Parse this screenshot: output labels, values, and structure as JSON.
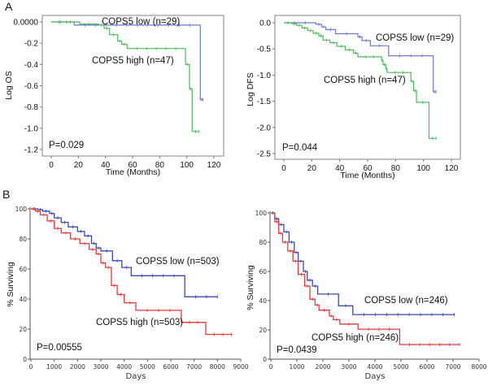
{
  "panel_labels": [
    "A",
    "B"
  ],
  "chart_data": [
    {
      "type": "line",
      "subtype": "kaplan-meier",
      "panel": "A",
      "title": "",
      "xlabel": "Time (Months)",
      "ylabel": "Log OS",
      "xlim": [
        0,
        120
      ],
      "ylim": [
        -1.2,
        0.0
      ],
      "xticks": [
        "0",
        "20",
        "40",
        "60",
        "80",
        "100",
        "120"
      ],
      "yticks": [
        "0.0000",
        "-0.2",
        "-0.4",
        "-0.6",
        "-0.8",
        "-1.0",
        "-1.2"
      ],
      "pvalue": "P=0.029",
      "series": [
        {
          "name": "COPS5 low (n=29)",
          "color": "#6a7bd0",
          "steps": [
            [
              0,
              0
            ],
            [
              17,
              -0.03
            ],
            [
              110,
              -0.73
            ],
            [
              112,
              -0.73
            ]
          ]
        },
        {
          "name": "COPS5 high (n=47)",
          "color": "#4cbb5c",
          "steps": [
            [
              0,
              0
            ],
            [
              21,
              -0.02
            ],
            [
              35,
              -0.03
            ],
            [
              39,
              -0.06
            ],
            [
              43,
              -0.12
            ],
            [
              49,
              -0.18
            ],
            [
              52,
              -0.21
            ],
            [
              56,
              -0.25
            ],
            [
              99,
              -0.4
            ],
            [
              102,
              -0.63
            ],
            [
              104,
              -1.03
            ],
            [
              109,
              -1.03
            ]
          ]
        }
      ]
    },
    {
      "type": "line",
      "subtype": "kaplan-meier",
      "panel": "A",
      "title": "",
      "xlabel": "Time (Months)",
      "ylabel": "Log DFS",
      "xlim": [
        0,
        120
      ],
      "ylim": [
        -2.5,
        0.0
      ],
      "xticks": [
        "0",
        "20",
        "40",
        "60",
        "80",
        "100",
        "120"
      ],
      "yticks": [
        "0.0",
        "-0.5",
        "-1.0",
        "-1.5",
        "-2.0",
        "-2.5"
      ],
      "pvalue": "P=0.044",
      "series": [
        {
          "name": "COPS5 low (n=29)",
          "color": "#6a7bd0",
          "steps": [
            [
              0,
              0
            ],
            [
              23,
              -0.03
            ],
            [
              27,
              -0.08
            ],
            [
              30,
              -0.13
            ],
            [
              37,
              -0.21
            ],
            [
              53,
              -0.27
            ],
            [
              56,
              -0.34
            ],
            [
              62,
              -0.44
            ],
            [
              75,
              -0.63
            ],
            [
              107,
              -1.32
            ],
            [
              109,
              -1.32
            ]
          ]
        },
        {
          "name": "COPS5 high (n=47)",
          "color": "#4cbb5c",
          "steps": [
            [
              0,
              0
            ],
            [
              6,
              -0.02
            ],
            [
              9,
              -0.05
            ],
            [
              13,
              -0.1
            ],
            [
              17,
              -0.15
            ],
            [
              21,
              -0.2
            ],
            [
              25,
              -0.25
            ],
            [
              28,
              -0.33
            ],
            [
              33,
              -0.38
            ],
            [
              38,
              -0.45
            ],
            [
              44,
              -0.52
            ],
            [
              50,
              -0.58
            ],
            [
              53,
              -0.65
            ],
            [
              70,
              -0.72
            ],
            [
              71,
              -0.8
            ],
            [
              73,
              -0.88
            ],
            [
              74,
              -0.95
            ],
            [
              91,
              -1.12
            ],
            [
              93,
              -1.3
            ],
            [
              95,
              -1.52
            ],
            [
              104,
              -2.21
            ],
            [
              109,
              -2.21
            ]
          ]
        }
      ]
    },
    {
      "type": "line",
      "subtype": "kaplan-meier",
      "panel": "B",
      "title": "",
      "xlabel": "Days",
      "ylabel": "% Surviving",
      "xlim": [
        0,
        9000
      ],
      "ylim": [
        0,
        100
      ],
      "xticks": [
        "0",
        "1000",
        "2000",
        "3000",
        "4000",
        "5000",
        "6000",
        "7000",
        "8000",
        "9000"
      ],
      "yticks": [
        "0",
        "20",
        "40",
        "60",
        "80",
        "100"
      ],
      "pvalue": "P=0.00555",
      "series": [
        {
          "name": "COPS5 low (n=503)",
          "color": "#3b47b5",
          "steps": [
            [
              0,
              100
            ],
            [
              300,
              99.5
            ],
            [
              500,
              98.5
            ],
            [
              800,
              97
            ],
            [
              1000,
              94
            ],
            [
              1300,
              91
            ],
            [
              1600,
              88
            ],
            [
              2000,
              85
            ],
            [
              2300,
              82
            ],
            [
              2600,
              77
            ],
            [
              2800,
              74
            ],
            [
              3000,
              72
            ],
            [
              3500,
              65.5
            ],
            [
              3900,
              61
            ],
            [
              4300,
              55.5
            ],
            [
              6600,
              41.5
            ],
            [
              8000,
              41.5
            ]
          ]
        },
        {
          "name": "COPS5 high (n=503)",
          "color": "#e8383a",
          "steps": [
            [
              0,
              100
            ],
            [
              200,
              98.5
            ],
            [
              400,
              96
            ],
            [
              700,
              92
            ],
            [
              1000,
              87
            ],
            [
              1300,
              84
            ],
            [
              1700,
              80
            ],
            [
              2100,
              77
            ],
            [
              2500,
              73
            ],
            [
              2800,
              70
            ],
            [
              3000,
              64
            ],
            [
              3200,
              61
            ],
            [
              3450,
              49
            ],
            [
              3700,
              43
            ],
            [
              4000,
              37.5
            ],
            [
              4500,
              32.5
            ],
            [
              6450,
              24.5
            ],
            [
              7500,
              16.5
            ],
            [
              8600,
              16.5
            ]
          ]
        }
      ]
    },
    {
      "type": "line",
      "subtype": "kaplan-meier",
      "panel": "B",
      "title": "",
      "xlabel": "Days",
      "ylabel": "% Surviving",
      "xlim": [
        0,
        8000
      ],
      "ylim": [
        0,
        100
      ],
      "xticks": [
        "0",
        "1000",
        "2000",
        "3000",
        "4000",
        "5000",
        "6000",
        "7000",
        "8000"
      ],
      "yticks": [
        "0",
        "20",
        "40",
        "60",
        "80",
        "100"
      ],
      "pvalue": "P=0.0439",
      "series": [
        {
          "name": "COPS5 low (n=246)",
          "color": "#3b47b5",
          "steps": [
            [
              0,
              100
            ],
            [
              150,
              96
            ],
            [
              300,
              92
            ],
            [
              500,
              87
            ],
            [
              700,
              80
            ],
            [
              900,
              73
            ],
            [
              1050,
              67
            ],
            [
              1250,
              60
            ],
            [
              1400,
              54
            ],
            [
              1600,
              50
            ],
            [
              1800,
              44.5
            ],
            [
              2600,
              36.5
            ],
            [
              3150,
              30.5
            ],
            [
              7050,
              30.5
            ]
          ]
        },
        {
          "name": "COPS5 high (n=246)",
          "color": "#e8383a",
          "steps": [
            [
              0,
              100
            ],
            [
              150,
              94
            ],
            [
              300,
              86
            ],
            [
              450,
              80
            ],
            [
              650,
              74
            ],
            [
              850,
              67
            ],
            [
              1050,
              58
            ],
            [
              1300,
              50
            ],
            [
              1500,
              41
            ],
            [
              1700,
              37
            ],
            [
              1850,
              33.5
            ],
            [
              2250,
              29.5
            ],
            [
              2400,
              27
            ],
            [
              2650,
              24
            ],
            [
              3350,
              20.5
            ],
            [
              4950,
              10
            ],
            [
              7250,
              10
            ]
          ]
        }
      ]
    }
  ]
}
